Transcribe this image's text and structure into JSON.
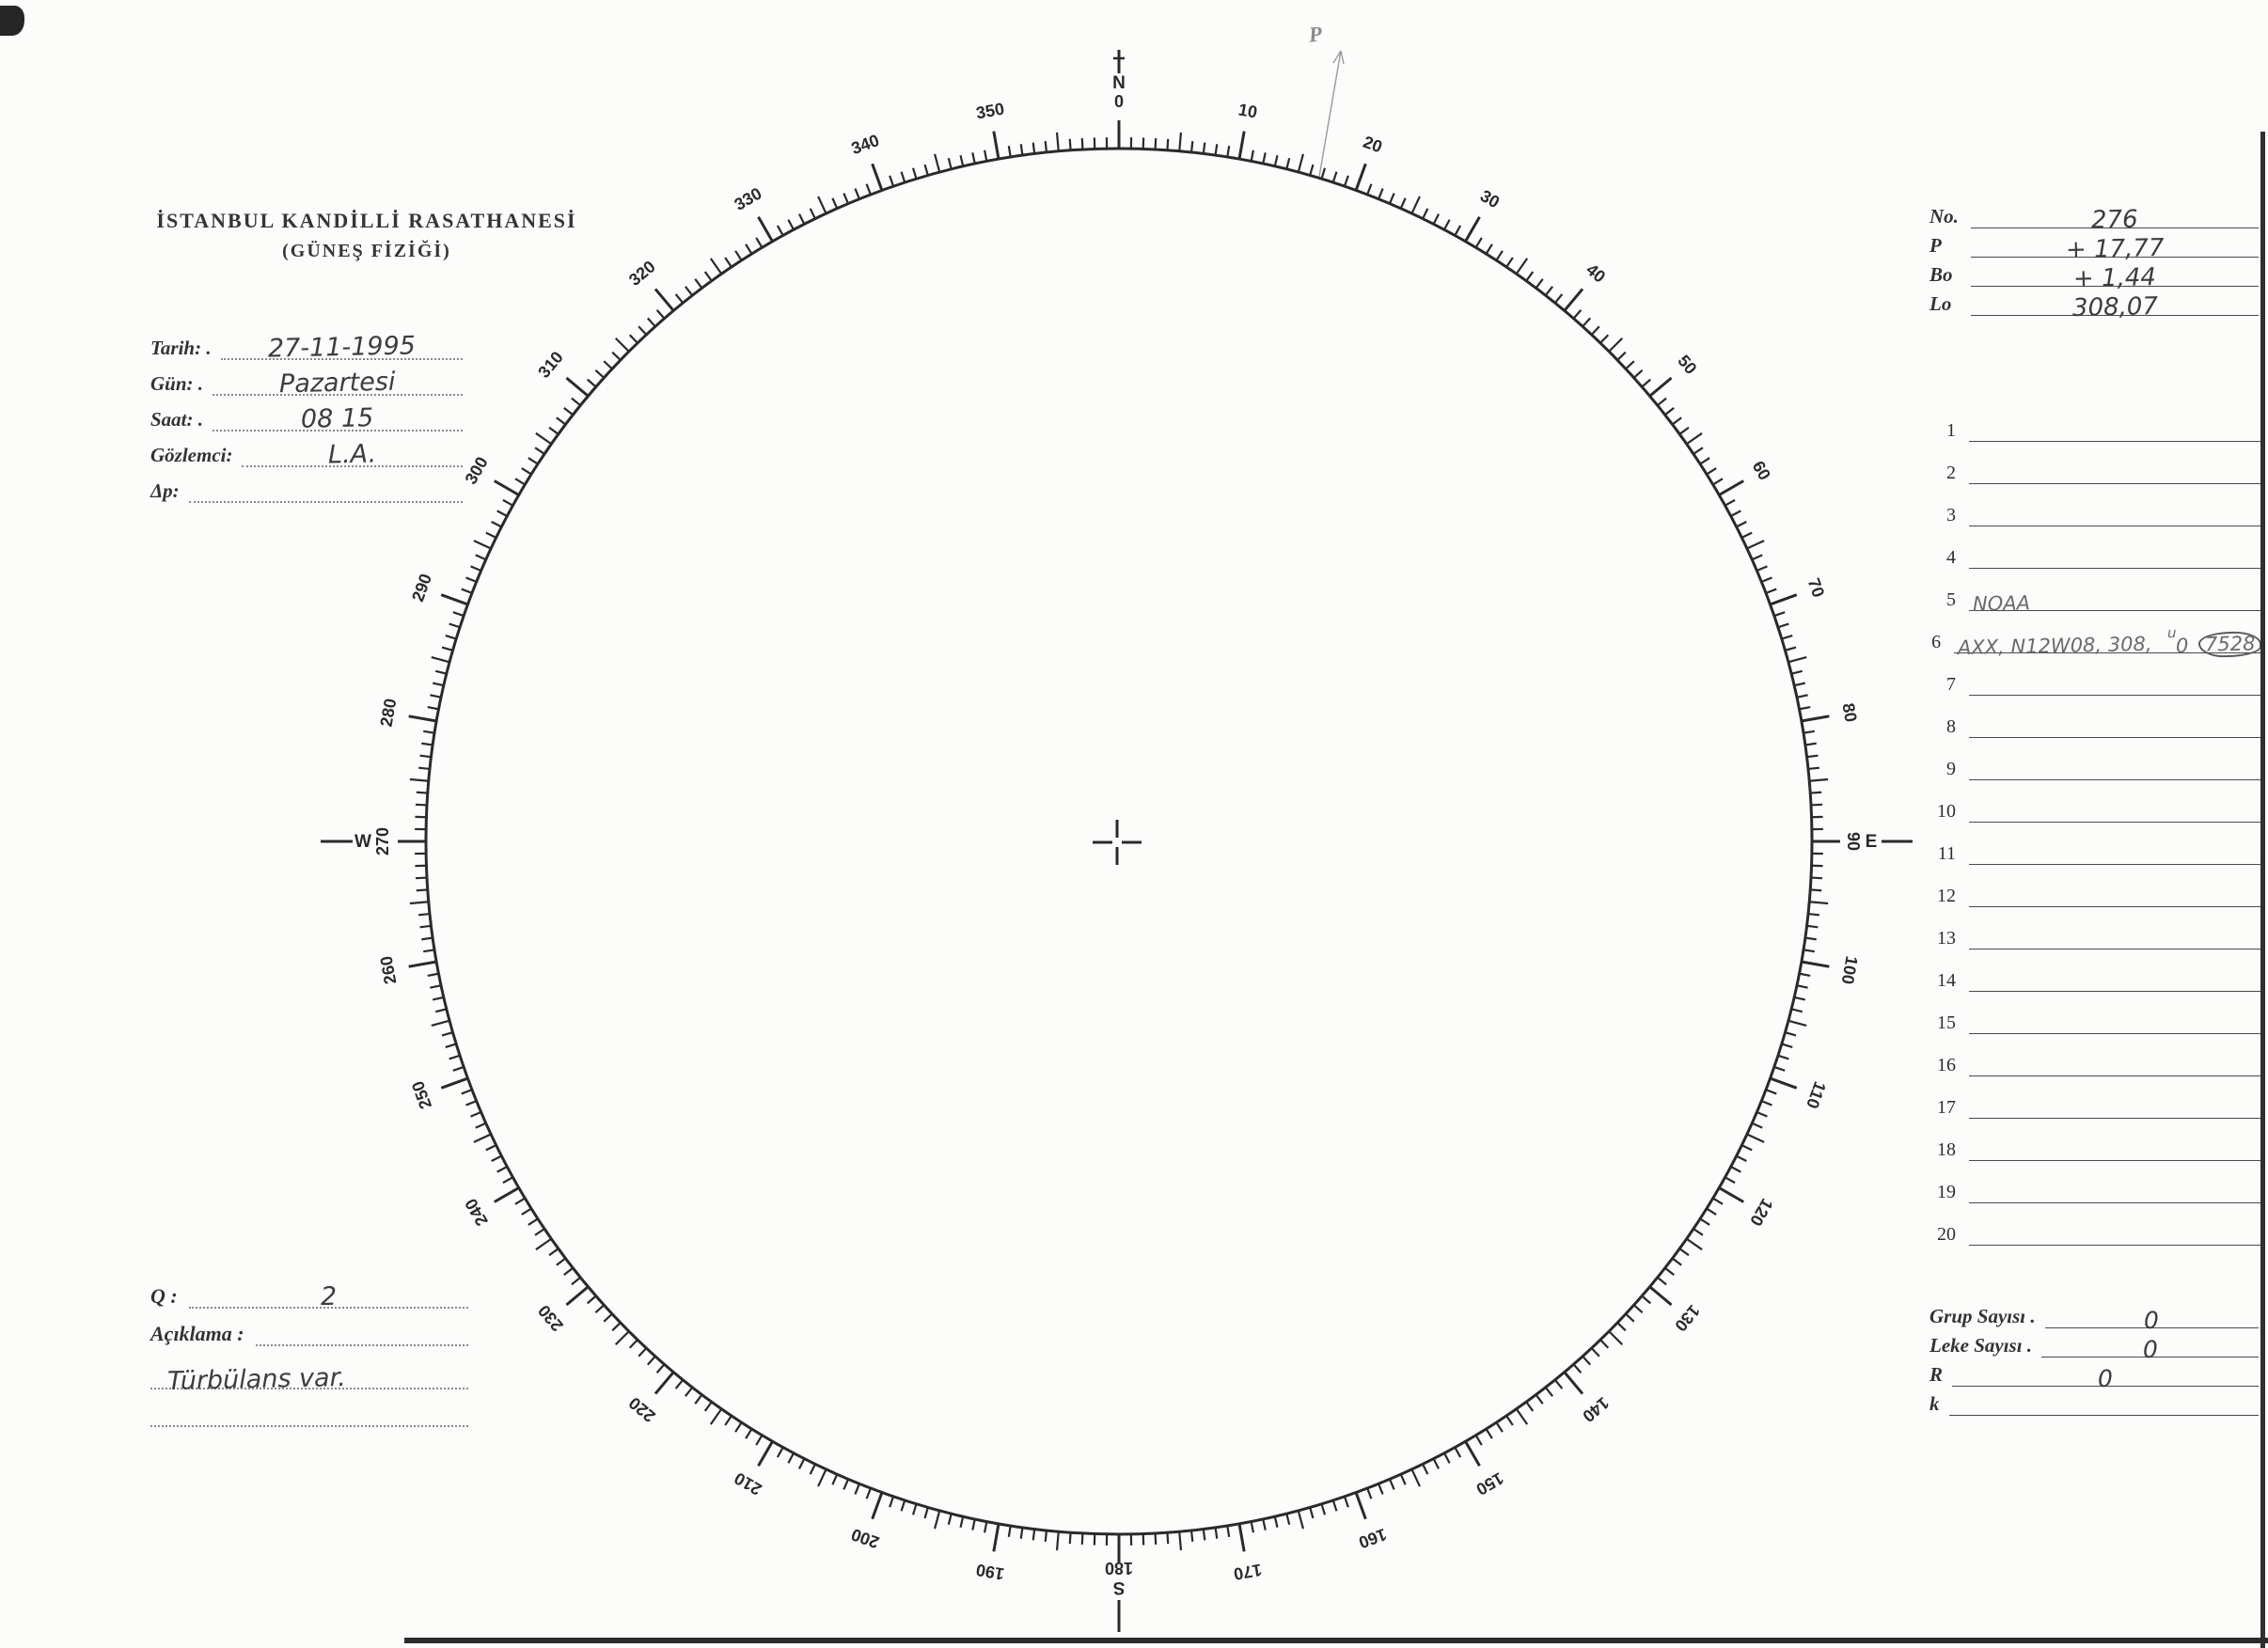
{
  "colors": {
    "ink": "#2a2a2a",
    "pencil": "#9a9a9a",
    "handwriting": "#3d3d3d"
  },
  "header": {
    "line1": "İSTANBUL KANDİLLİ RASATHANESİ",
    "line2": "(GÜNEŞ FİZİĞİ)"
  },
  "observation": {
    "fields": [
      {
        "label": "Tarih: .",
        "value": "27-11-1995"
      },
      {
        "label": "Gün: .",
        "value": "Pazartesi"
      },
      {
        "label": "Saat: .",
        "value": "08 15"
      },
      {
        "label": "Gözlemci:",
        "value": "L.A."
      },
      {
        "label": "Δp:",
        "value": ""
      }
    ]
  },
  "ephemeris": {
    "rows": [
      {
        "label": "No.",
        "value": "276"
      },
      {
        "label": "P",
        "value": "+ 17,77"
      },
      {
        "label": "Bo",
        "value": "+ 1,44"
      },
      {
        "label": "Lo",
        "value": "308,07"
      }
    ]
  },
  "group_list": {
    "rows": [
      {
        "num": "1",
        "value": "",
        "sup": "",
        "zero": "",
        "circled": ""
      },
      {
        "num": "2",
        "value": "",
        "sup": "",
        "zero": "",
        "circled": ""
      },
      {
        "num": "3",
        "value": "",
        "sup": "",
        "zero": "",
        "circled": ""
      },
      {
        "num": "4",
        "value": "",
        "sup": "",
        "zero": "",
        "circled": ""
      },
      {
        "num": "5",
        "value": "NOAA",
        "sup": "",
        "zero": "",
        "circled": ""
      },
      {
        "num": "6",
        "value": "AXX, N12W08, 308,",
        "sup": "u",
        "zero": "0",
        "circled": "7528"
      },
      {
        "num": "7",
        "value": "",
        "sup": "",
        "zero": "",
        "circled": ""
      },
      {
        "num": "8",
        "value": "",
        "sup": "",
        "zero": "",
        "circled": ""
      },
      {
        "num": "9",
        "value": "",
        "sup": "",
        "zero": "",
        "circled": ""
      },
      {
        "num": "10",
        "value": "",
        "sup": "",
        "zero": "",
        "circled": ""
      },
      {
        "num": "11",
        "value": "",
        "sup": "",
        "zero": "",
        "circled": ""
      },
      {
        "num": "12",
        "value": "",
        "sup": "",
        "zero": "",
        "circled": ""
      },
      {
        "num": "13",
        "value": "",
        "sup": "",
        "zero": "",
        "circled": ""
      },
      {
        "num": "14",
        "value": "",
        "sup": "",
        "zero": "",
        "circled": ""
      },
      {
        "num": "15",
        "value": "",
        "sup": "",
        "zero": "",
        "circled": ""
      },
      {
        "num": "16",
        "value": "",
        "sup": "",
        "zero": "",
        "circled": ""
      },
      {
        "num": "17",
        "value": "",
        "sup": "",
        "zero": "",
        "circled": ""
      },
      {
        "num": "18",
        "value": "",
        "sup": "",
        "zero": "",
        "circled": ""
      },
      {
        "num": "19",
        "value": "",
        "sup": "",
        "zero": "",
        "circled": ""
      },
      {
        "num": "20",
        "value": "",
        "sup": "",
        "zero": "",
        "circled": ""
      }
    ]
  },
  "quality": {
    "label": "Q :",
    "value": "2"
  },
  "remarks": {
    "label": "Açıklama :",
    "note": "Türbülans var."
  },
  "summary": {
    "rows": [
      {
        "label": "Grup Sayısı .",
        "value": "0"
      },
      {
        "label": "Leke Sayısı .",
        "value": "0"
      },
      {
        "label": "R",
        "value": "0"
      },
      {
        "label": "k",
        "value": ""
      }
    ]
  },
  "protractor": {
    "cardinals": {
      "north": {
        "letter": "N",
        "degree": "0"
      },
      "east": {
        "letter": "E",
        "degree": "90"
      },
      "south": {
        "letter": "S",
        "degree": "180"
      },
      "west": {
        "letter": "W",
        "degree": "270"
      }
    },
    "degree_labels": [
      {
        "a": 10,
        "t": "10"
      },
      {
        "a": 20,
        "t": "20"
      },
      {
        "a": 30,
        "t": "30"
      },
      {
        "a": 40,
        "t": "40"
      },
      {
        "a": 50,
        "t": "50"
      },
      {
        "a": 60,
        "t": "60"
      },
      {
        "a": 70,
        "t": "70"
      },
      {
        "a": 80,
        "t": "80"
      },
      {
        "a": 100,
        "t": "100"
      },
      {
        "a": 110,
        "t": "110"
      },
      {
        "a": 120,
        "t": "120"
      },
      {
        "a": 130,
        "t": "130"
      },
      {
        "a": 140,
        "t": "140"
      },
      {
        "a": 150,
        "t": "150"
      },
      {
        "a": 160,
        "t": "160"
      },
      {
        "a": 170,
        "t": "170"
      },
      {
        "a": 190,
        "t": "190"
      },
      {
        "a": 200,
        "t": "200"
      },
      {
        "a": 210,
        "t": "210"
      },
      {
        "a": 220,
        "t": "220"
      },
      {
        "a": 230,
        "t": "230"
      },
      {
        "a": 240,
        "t": "240"
      },
      {
        "a": 250,
        "t": "250"
      },
      {
        "a": 260,
        "t": "260"
      },
      {
        "a": 280,
        "t": "280"
      },
      {
        "a": 290,
        "t": "290"
      },
      {
        "a": 300,
        "t": "300"
      },
      {
        "a": 310,
        "t": "310"
      },
      {
        "a": 320,
        "t": "320"
      },
      {
        "a": 330,
        "t": "330"
      },
      {
        "a": 340,
        "t": "340"
      },
      {
        "a": 350,
        "t": "350"
      }
    ]
  },
  "annotations": {
    "p_label": "P"
  }
}
